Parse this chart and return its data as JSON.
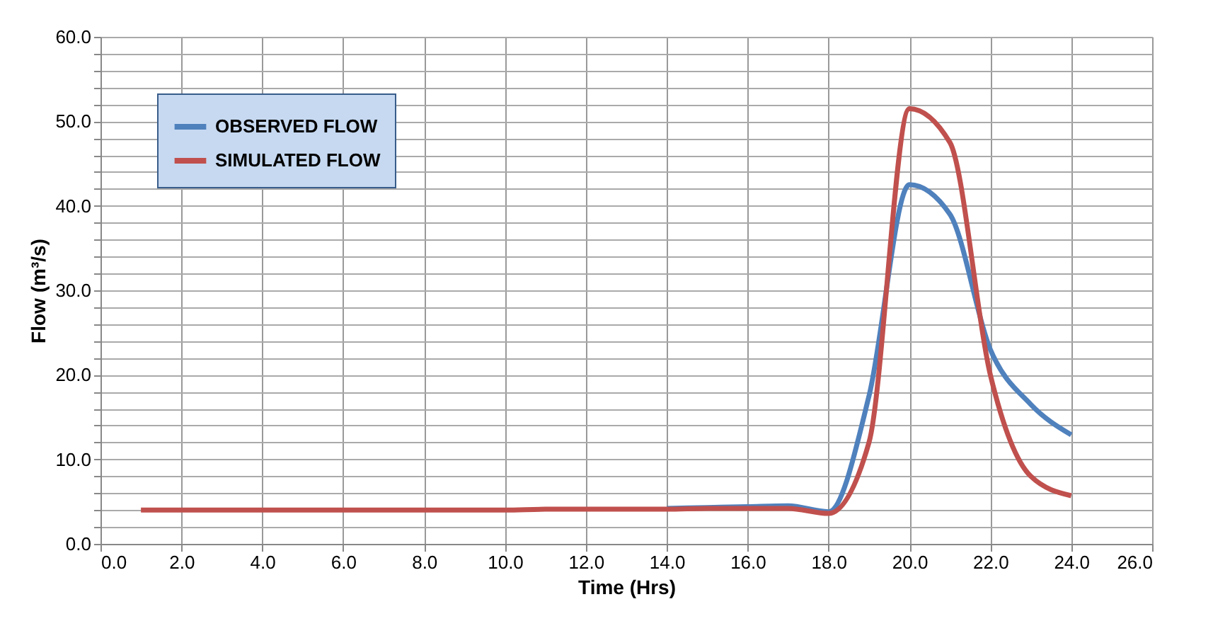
{
  "chart_data": {
    "type": "line",
    "xlabel": "Time (Hrs)",
    "ylabel": "Flow (m³/s)",
    "x": [
      1,
      2,
      3,
      4,
      5,
      6,
      7,
      8,
      9,
      10,
      11,
      12,
      13,
      14,
      15,
      16,
      17,
      18,
      19,
      20,
      21,
      22,
      23,
      24
    ],
    "series": [
      {
        "name": "OBSERVED FLOW",
        "color": "#4f81bd",
        "values": [
          null,
          null,
          null,
          null,
          null,
          null,
          null,
          null,
          null,
          null,
          null,
          null,
          null,
          4.2,
          4.3,
          4.4,
          4.5,
          3.8,
          17.5,
          42.5,
          39.0,
          23.0,
          16.5,
          12.9
        ]
      },
      {
        "name": "SIMULATED FLOW",
        "color": "#c0504d",
        "values": [
          4.0,
          4.0,
          4.0,
          4.0,
          4.0,
          4.0,
          4.0,
          4.0,
          4.0,
          4.0,
          4.1,
          4.1,
          4.1,
          4.1,
          4.2,
          4.2,
          4.2,
          3.6,
          12.0,
          51.5,
          47.5,
          20.0,
          8.0,
          5.7
        ]
      }
    ],
    "xlim": [
      0,
      26
    ],
    "ylim": [
      0,
      60
    ],
    "xticks": [
      {
        "value": 0,
        "label": "0.0"
      },
      {
        "value": 2,
        "label": "2.0"
      },
      {
        "value": 4,
        "label": "4.0"
      },
      {
        "value": 6,
        "label": "6.0"
      },
      {
        "value": 8,
        "label": "8.0"
      },
      {
        "value": 10,
        "label": "10.0"
      },
      {
        "value": 12,
        "label": "12.0"
      },
      {
        "value": 14,
        "label": "14.0"
      },
      {
        "value": 16,
        "label": "16.0"
      },
      {
        "value": 18,
        "label": "18.0"
      },
      {
        "value": 20,
        "label": "20.0"
      },
      {
        "value": 22,
        "label": "22.0"
      },
      {
        "value": 24,
        "label": "24.0"
      },
      {
        "value": 26,
        "label": "26.0"
      }
    ],
    "yticks": [
      {
        "value": 0,
        "label": "0.0"
      },
      {
        "value": 2,
        "label": null
      },
      {
        "value": 4,
        "label": null
      },
      {
        "value": 6,
        "label": null
      },
      {
        "value": 8,
        "label": null
      },
      {
        "value": 10,
        "label": "10.0"
      },
      {
        "value": 12,
        "label": null
      },
      {
        "value": 14,
        "label": null
      },
      {
        "value": 16,
        "label": null
      },
      {
        "value": 18,
        "label": null
      },
      {
        "value": 20,
        "label": "20.0"
      },
      {
        "value": 22,
        "label": null
      },
      {
        "value": 24,
        "label": null
      },
      {
        "value": 26,
        "label": null
      },
      {
        "value": 28,
        "label": null
      },
      {
        "value": 30,
        "label": "30.0"
      },
      {
        "value": 32,
        "label": null
      },
      {
        "value": 34,
        "label": null
      },
      {
        "value": 36,
        "label": null
      },
      {
        "value": 38,
        "label": null
      },
      {
        "value": 40,
        "label": "40.0"
      },
      {
        "value": 42,
        "label": null
      },
      {
        "value": 44,
        "label": null
      },
      {
        "value": 46,
        "label": null
      },
      {
        "value": 48,
        "label": null
      },
      {
        "value": 50,
        "label": "50.0"
      },
      {
        "value": 52,
        "label": null
      },
      {
        "value": 54,
        "label": null
      },
      {
        "value": 56,
        "label": null
      },
      {
        "value": 58,
        "label": null
      },
      {
        "value": 60,
        "label": "60.0"
      }
    ],
    "grid": true,
    "legend": "top left",
    "marker": "none",
    "line_style": "solid"
  }
}
